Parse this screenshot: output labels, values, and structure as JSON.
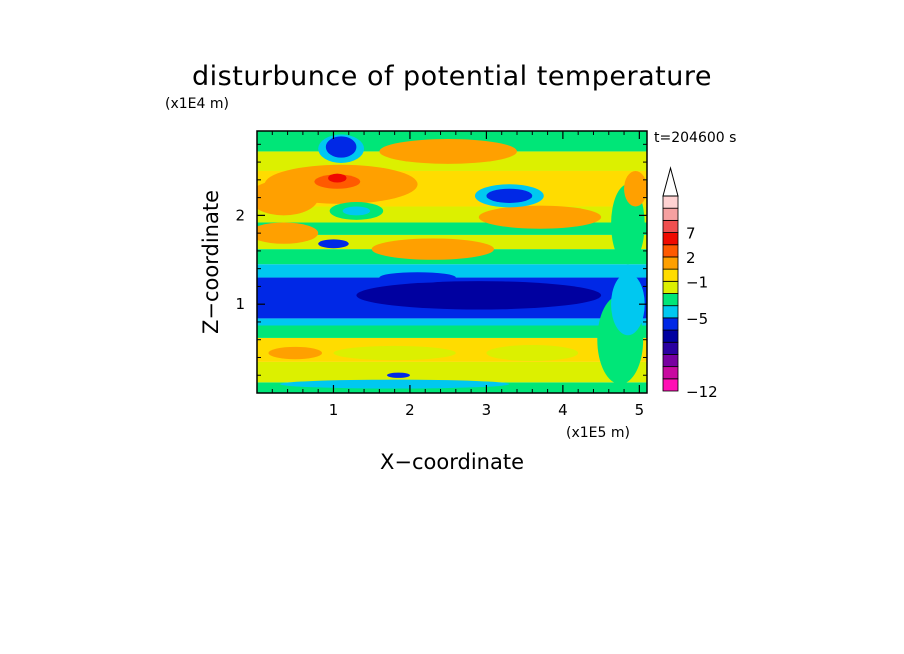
{
  "chart_data": {
    "type": "heatmap",
    "title": "disturbunce of potential temperature",
    "time_label": "t=204600 s",
    "xlabel": "X−coordinate",
    "ylabel": "Z−coordinate",
    "x_unit": "(x1E5 m)",
    "y_unit": "(x1E4 m)",
    "x_range": [
      0,
      5.1
    ],
    "y_range": [
      0,
      2.95
    ],
    "x_ticks": [
      "1",
      "2",
      "3",
      "4",
      "5"
    ],
    "y_ticks": [
      "1",
      "2"
    ],
    "x_tick_values": [
      1,
      2,
      3,
      4,
      5
    ],
    "y_tick_values": [
      1,
      2
    ],
    "colorbar": {
      "extend": "max",
      "tick_labels": [
        "7",
        "2",
        "−1",
        "−5",
        "−12"
      ],
      "colors": [
        "#ff0fb4",
        "#c80aa0",
        "#7800a0",
        "#2a00a0",
        "#0000a0",
        "#0028e6",
        "#00c8f0",
        "#00e678",
        "#dcf000",
        "#ffdc00",
        "#ffa000",
        "#ff5a00",
        "#f00a00",
        "#f05050",
        "#f5a0a0",
        "#ffd2d2"
      ]
    },
    "bands": [
      {
        "z": [
          0.0,
          0.12
        ],
        "color": "#00e678"
      },
      {
        "z": [
          0.12,
          0.35
        ],
        "color": "#dcf000"
      },
      {
        "z": [
          0.35,
          0.62
        ],
        "color": "#ffdc00"
      },
      {
        "z": [
          0.62,
          0.76
        ],
        "color": "#00e678"
      },
      {
        "z": [
          0.76,
          0.84
        ],
        "color": "#00c8f0"
      },
      {
        "z": [
          0.84,
          1.3
        ],
        "color": "#0028e6"
      },
      {
        "z": [
          1.3,
          1.45
        ],
        "color": "#00c8f0"
      },
      {
        "z": [
          1.45,
          1.62
        ],
        "color": "#00e678"
      },
      {
        "z": [
          1.62,
          1.78
        ],
        "color": "#dcf000"
      },
      {
        "z": [
          1.78,
          1.92
        ],
        "color": "#00e678"
      },
      {
        "z": [
          1.92,
          2.1
        ],
        "color": "#dcf000"
      },
      {
        "z": [
          2.1,
          2.5
        ],
        "color": "#ffdc00"
      },
      {
        "z": [
          2.5,
          2.72
        ],
        "color": "#dcf000"
      },
      {
        "z": [
          2.72,
          2.95
        ],
        "color": "#00e678"
      }
    ],
    "features": [
      {
        "x": 2.9,
        "z": 1.1,
        "rx": 1.6,
        "rz": 0.16,
        "color": "#0000a0"
      },
      {
        "x": 1.1,
        "z": 2.35,
        "rx": 1.0,
        "rz": 0.22,
        "color": "#ffa000"
      },
      {
        "x": 0.35,
        "z": 2.2,
        "rx": 0.45,
        "rz": 0.2,
        "color": "#ffa000"
      },
      {
        "x": 1.05,
        "z": 2.38,
        "rx": 0.3,
        "rz": 0.08,
        "color": "#ff5a00"
      },
      {
        "x": 1.05,
        "z": 2.42,
        "rx": 0.12,
        "rz": 0.05,
        "color": "#f00a00"
      },
      {
        "x": 3.7,
        "z": 1.98,
        "rx": 0.8,
        "rz": 0.13,
        "color": "#ffa000"
      },
      {
        "x": 2.3,
        "z": 1.62,
        "rx": 0.8,
        "rz": 0.12,
        "color": "#ffa000"
      },
      {
        "x": 0.35,
        "z": 1.8,
        "rx": 0.45,
        "rz": 0.12,
        "color": "#ffa000"
      },
      {
        "x": 2.5,
        "z": 2.72,
        "rx": 0.9,
        "rz": 0.14,
        "color": "#ffa000"
      },
      {
        "x": 1.1,
        "z": 2.75,
        "rx": 0.3,
        "rz": 0.16,
        "color": "#00c8f0"
      },
      {
        "x": 1.1,
        "z": 2.77,
        "rx": 0.2,
        "rz": 0.12,
        "color": "#0028e6"
      },
      {
        "x": 3.3,
        "z": 2.22,
        "rx": 0.45,
        "rz": 0.13,
        "color": "#00c8f0"
      },
      {
        "x": 3.3,
        "z": 2.22,
        "rx": 0.3,
        "rz": 0.08,
        "color": "#0028e6"
      },
      {
        "x": 1.3,
        "z": 2.05,
        "rx": 0.35,
        "rz": 0.1,
        "color": "#00e678"
      },
      {
        "x": 1.3,
        "z": 2.05,
        "rx": 0.18,
        "rz": 0.05,
        "color": "#00c8f0"
      },
      {
        "x": 1.0,
        "z": 1.68,
        "rx": 0.2,
        "rz": 0.05,
        "color": "#0028e6"
      },
      {
        "x": 2.1,
        "z": 1.3,
        "rx": 0.5,
        "rz": 0.06,
        "color": "#0028e6"
      },
      {
        "x": 1.8,
        "z": 0.45,
        "rx": 0.8,
        "rz": 0.08,
        "color": "#dcf000"
      },
      {
        "x": 3.6,
        "z": 0.45,
        "rx": 0.6,
        "rz": 0.09,
        "color": "#dcf000"
      },
      {
        "x": 0.5,
        "z": 0.45,
        "rx": 0.35,
        "rz": 0.07,
        "color": "#ffa000"
      },
      {
        "x": 4.75,
        "z": 0.6,
        "rx": 0.3,
        "rz": 0.5,
        "color": "#00e678"
      },
      {
        "x": 4.85,
        "z": 1.0,
        "rx": 0.22,
        "rz": 0.35,
        "color": "#00c8f0"
      },
      {
        "x": 4.85,
        "z": 1.9,
        "rx": 0.22,
        "rz": 0.45,
        "color": "#00e678"
      },
      {
        "x": 4.95,
        "z": 2.3,
        "rx": 0.15,
        "rz": 0.2,
        "color": "#ffa000"
      },
      {
        "x": 1.8,
        "z": 0.1,
        "rx": 1.5,
        "rz": 0.05,
        "color": "#00c8f0"
      },
      {
        "x": 1.85,
        "z": 0.2,
        "rx": 0.15,
        "rz": 0.03,
        "color": "#0028e6"
      }
    ]
  }
}
